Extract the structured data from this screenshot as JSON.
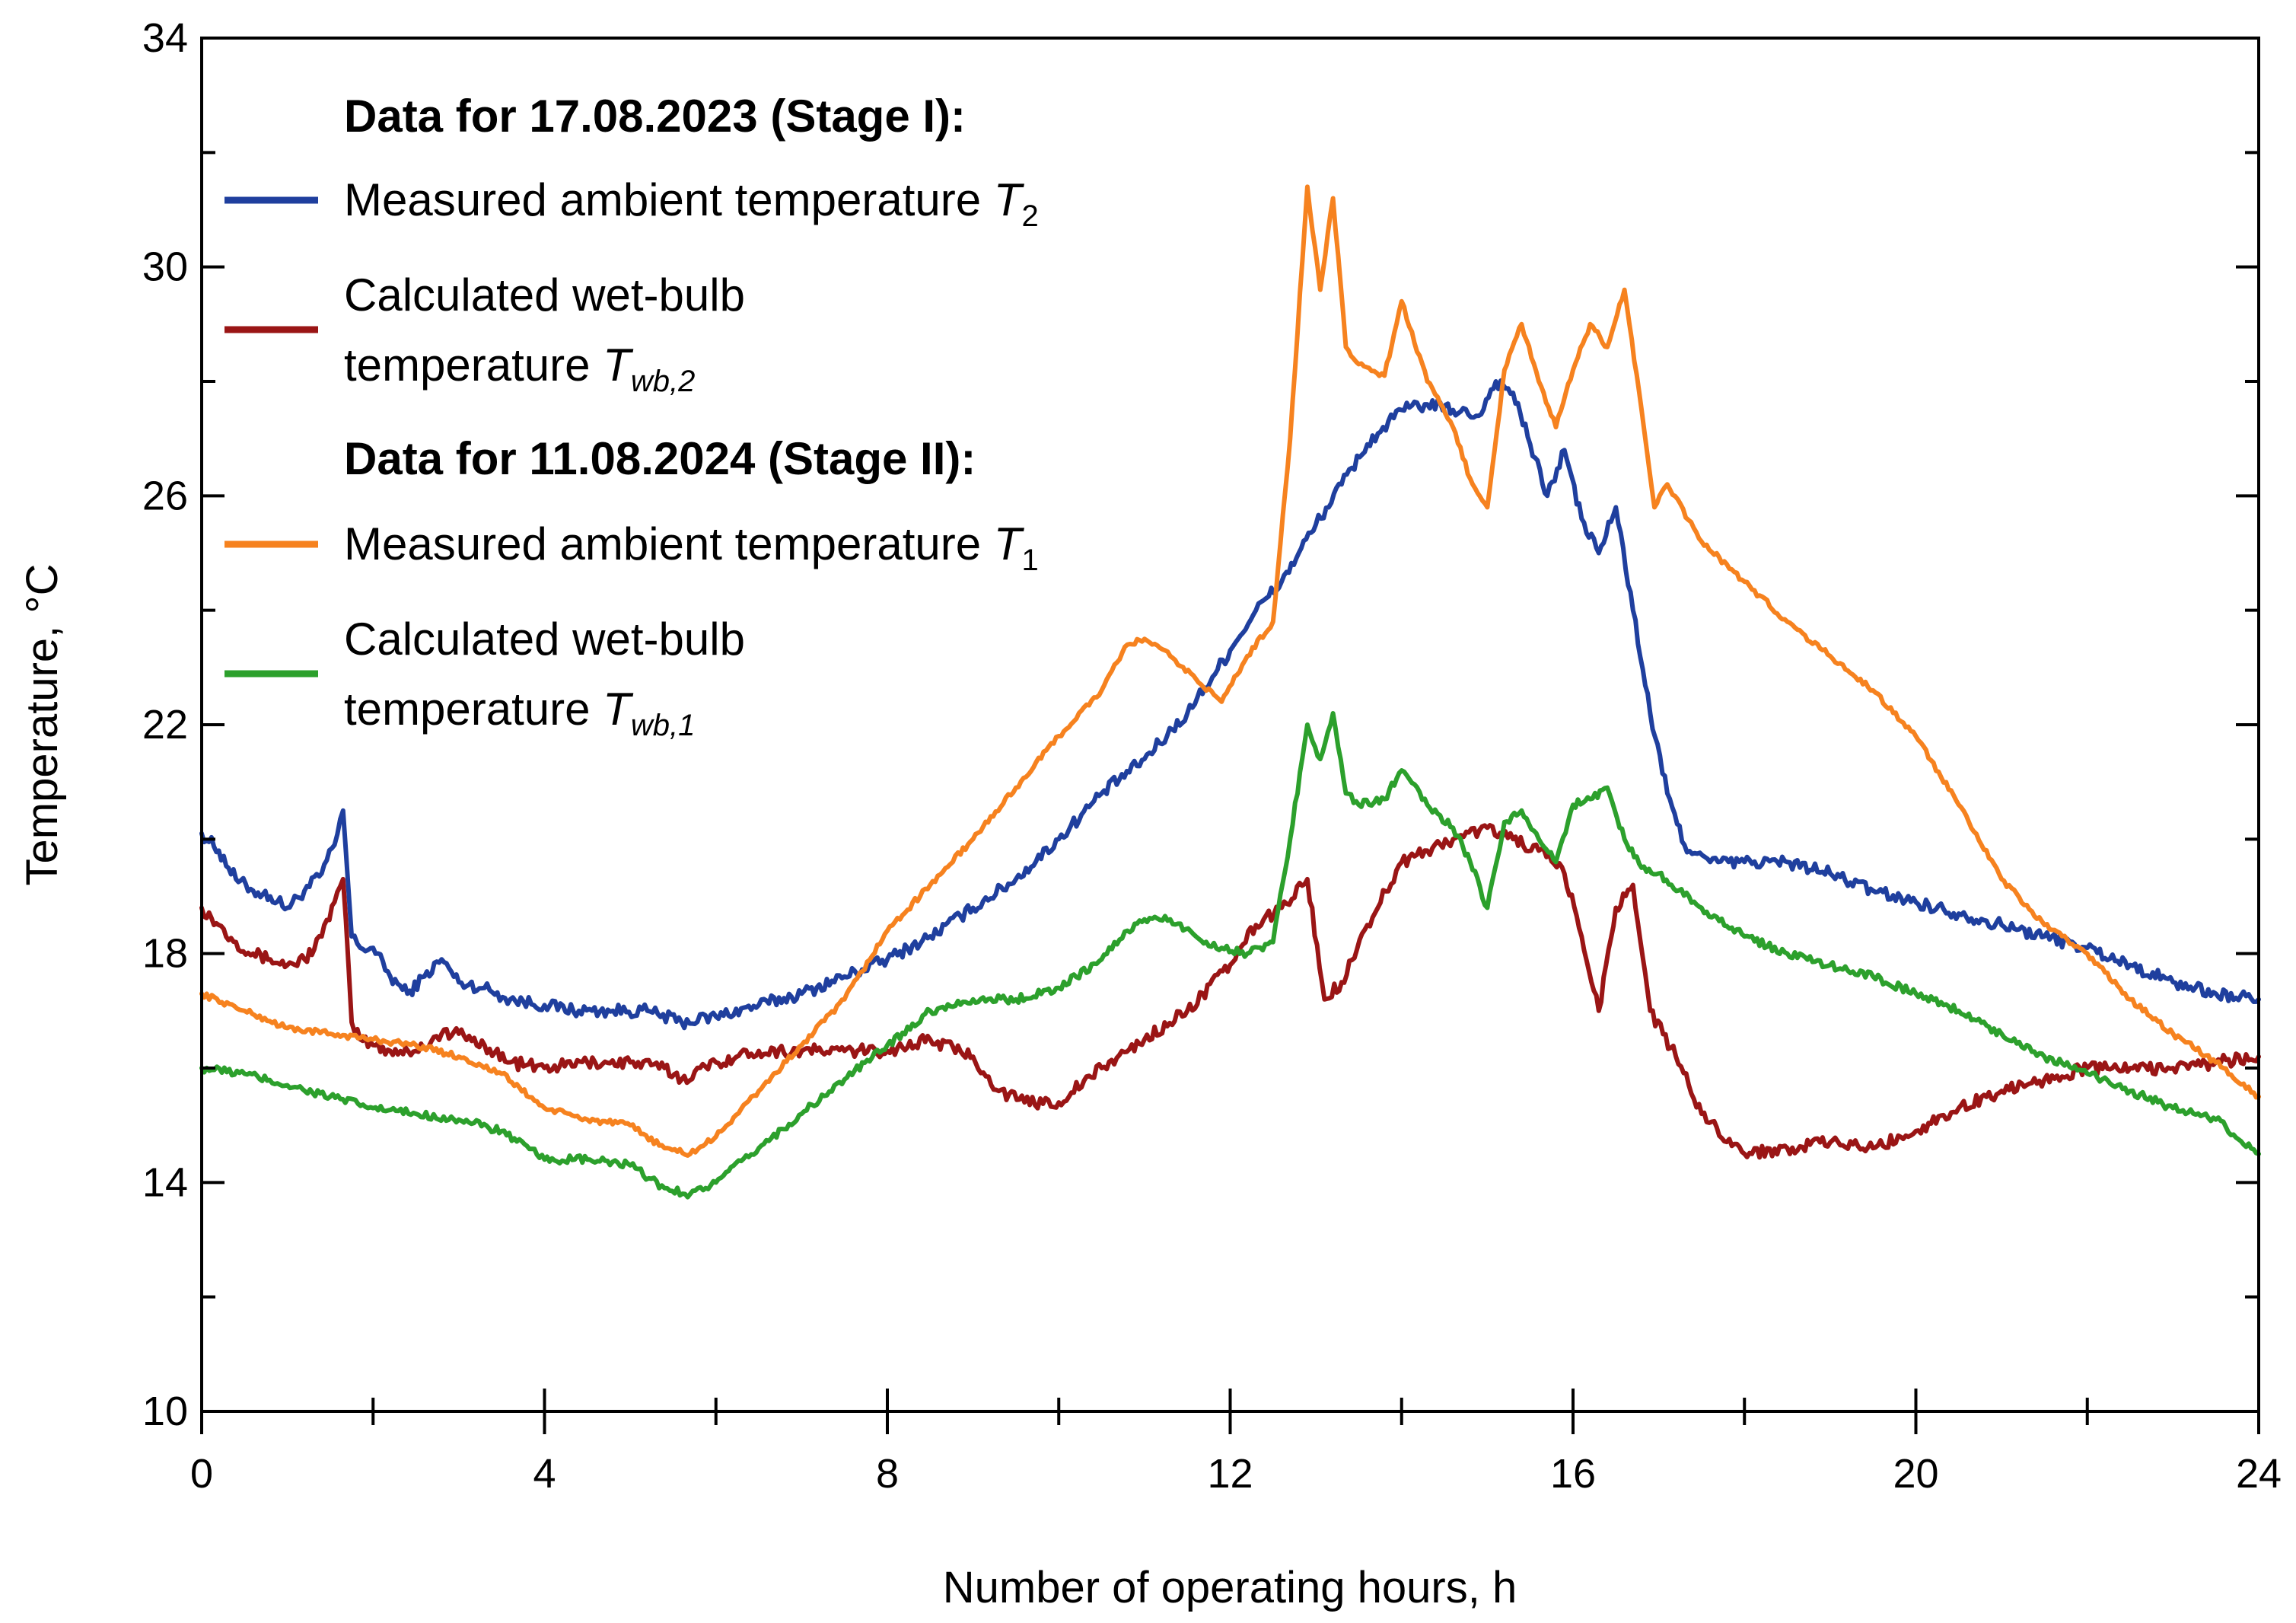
{
  "chart_data": {
    "type": "line",
    "title": "",
    "xlabel": "Number of operating hours, h",
    "ylabel": "Temperature, °C",
    "xlim": [
      0,
      24
    ],
    "ylim": [
      10,
      34
    ],
    "xticks": [
      0,
      4,
      8,
      12,
      16,
      20,
      24
    ],
    "yticks": [
      10,
      14,
      18,
      22,
      26,
      30,
      34
    ],
    "xtick_labels": [
      "0",
      "4",
      "8",
      "12",
      "16",
      "20",
      "24"
    ],
    "ytick_labels": [
      "10",
      "14",
      "18",
      "22",
      "26",
      "30",
      "34"
    ],
    "grid": false,
    "legend_position": "top-left",
    "legend": {
      "group1_title": "Data for 17.08.2023 (Stage I):",
      "group2_title": "Data for 11.08.2024 (Stage II):",
      "s1_text": "Measured ambient temperature",
      "s1_sym": "T",
      "s1_sub": "2",
      "s2_line1": "Calculated wet-bulb",
      "s2_line2": "temperature",
      "s2_sym": "T",
      "s2_sub": "wb,2",
      "s3_text": "Measured ambient temperature",
      "s3_sym": "T",
      "s3_sub": "1",
      "s4_line1": "Calculated wet-bulb",
      "s4_line2": "temperature",
      "s4_sym": "T",
      "s4_sub": "wb,1"
    },
    "series": [
      {
        "name": "Measured ambient temperature T2 (17.08.2023)",
        "color": "#1f3f9e",
        "x": [
          0,
          0.2,
          0.4,
          0.6,
          0.8,
          1.0,
          1.2,
          1.4,
          1.55,
          1.65,
          1.75,
          1.85,
          2.0,
          2.2,
          2.4,
          2.6,
          2.8,
          3.0,
          3.3,
          3.6,
          4.0,
          4.4,
          4.8,
          5.2,
          5.6,
          6.0,
          6.5,
          7.0,
          7.5,
          8.0,
          8.5,
          9.0,
          9.5,
          10.0,
          10.5,
          11.0,
          11.5,
          12.0,
          12.3,
          12.6,
          12.8,
          13.0,
          13.3,
          13.6,
          14.0,
          14.3,
          14.6,
          14.9,
          15.1,
          15.3,
          15.5,
          15.7,
          15.9,
          16.1,
          16.3,
          16.5,
          16.7,
          16.9,
          17.1,
          17.3,
          17.6,
          18.0,
          18.5,
          19.0,
          19.5,
          20.0,
          20.5,
          21.0,
          21.5,
          22.0,
          22.5,
          23.0,
          23.5,
          24.0
        ],
        "y": [
          20.1,
          19.8,
          19.3,
          19.1,
          19.0,
          18.8,
          19.1,
          19.4,
          19.9,
          20.5,
          18.3,
          18.1,
          18.1,
          17.6,
          17.3,
          17.6,
          17.9,
          17.5,
          17.4,
          17.2,
          17.1,
          17.0,
          17.0,
          17.0,
          16.8,
          16.9,
          17.1,
          17.3,
          17.6,
          17.9,
          18.3,
          18.8,
          19.3,
          20.0,
          20.8,
          21.4,
          22.2,
          23.3,
          24.0,
          24.5,
          25.0,
          25.5,
          26.2,
          26.9,
          27.5,
          27.6,
          27.5,
          27.4,
          28.0,
          27.8,
          26.9,
          26.0,
          26.8,
          25.6,
          25.0,
          25.8,
          24.0,
          22.2,
          20.8,
          19.9,
          19.6,
          19.6,
          19.6,
          19.4,
          19.1,
          18.9,
          18.7,
          18.5,
          18.3,
          18.1,
          17.8,
          17.5,
          17.3,
          17.2
        ]
      },
      {
        "name": "Calculated wet-bulb temperature Twb,2 (17.08.2023)",
        "color": "#9a1515",
        "x": [
          0,
          0.2,
          0.4,
          0.6,
          0.8,
          1.0,
          1.2,
          1.4,
          1.55,
          1.65,
          1.75,
          1.85,
          2.0,
          2.2,
          2.5,
          2.8,
          3.0,
          3.3,
          3.6,
          4.0,
          4.5,
          5.0,
          5.4,
          5.6,
          6.0,
          6.5,
          7.0,
          7.5,
          8.0,
          8.5,
          9.0,
          9.3,
          9.6,
          10.0,
          10.5,
          11.0,
          11.5,
          12.0,
          12.3,
          12.6,
          12.9,
          13.1,
          13.3,
          13.6,
          14.0,
          14.3,
          14.6,
          15.0,
          15.3,
          15.6,
          15.9,
          16.1,
          16.3,
          16.5,
          16.7,
          16.9,
          17.2,
          17.5,
          18.0,
          18.5,
          19.0,
          19.5,
          20.0,
          20.5,
          21.0,
          21.5,
          22.0,
          22.5,
          23.0,
          23.5,
          24.0
        ],
        "y": [
          18.8,
          18.5,
          18.2,
          18.0,
          17.9,
          17.8,
          17.9,
          18.3,
          18.9,
          19.3,
          16.8,
          16.5,
          16.4,
          16.3,
          16.3,
          16.6,
          16.6,
          16.4,
          16.1,
          16.0,
          16.1,
          16.1,
          16.0,
          15.8,
          16.1,
          16.3,
          16.3,
          16.3,
          16.3,
          16.5,
          16.2,
          15.6,
          15.4,
          15.4,
          16.0,
          16.5,
          17.0,
          17.8,
          18.5,
          18.8,
          19.3,
          17.2,
          17.5,
          18.5,
          19.6,
          19.8,
          20.0,
          20.2,
          20.0,
          19.8,
          19.4,
          18.3,
          17.0,
          18.8,
          19.2,
          17.0,
          16.2,
          15.2,
          14.5,
          14.6,
          14.7,
          14.6,
          14.9,
          15.3,
          15.6,
          15.8,
          16.0,
          16.0,
          16.0,
          16.1,
          16.2
        ]
      },
      {
        "name": "Measured ambient temperature T1 (11.08.2024)",
        "color": "#f6821f",
        "x": [
          0,
          0.5,
          1.0,
          1.5,
          2.0,
          2.5,
          3.0,
          3.5,
          4.0,
          4.5,
          5.0,
          5.4,
          5.7,
          6.0,
          6.5,
          7.0,
          7.5,
          8.0,
          8.5,
          9.0,
          9.5,
          10.0,
          10.5,
          10.8,
          11.0,
          11.3,
          11.6,
          11.9,
          12.2,
          12.5,
          12.7,
          12.9,
          13.05,
          13.2,
          13.35,
          13.5,
          13.8,
          14.0,
          14.3,
          14.6,
          14.8,
          15.0,
          15.2,
          15.4,
          15.6,
          15.8,
          16.0,
          16.2,
          16.4,
          16.6,
          16.8,
          16.95,
          17.1,
          17.5,
          18.0,
          18.5,
          19.0,
          19.5,
          20.0,
          20.5,
          21.0,
          21.5,
          22.0,
          22.5,
          23.0,
          23.5,
          24.0
        ],
        "y": [
          17.3,
          17.0,
          16.7,
          16.6,
          16.5,
          16.4,
          16.2,
          15.9,
          15.3,
          15.1,
          15.0,
          14.6,
          14.5,
          14.8,
          15.6,
          16.4,
          17.2,
          18.4,
          19.2,
          20.0,
          20.9,
          21.8,
          22.6,
          23.4,
          23.5,
          23.2,
          22.8,
          22.4,
          23.2,
          23.8,
          27.0,
          31.4,
          29.6,
          31.2,
          28.6,
          28.3,
          28.1,
          29.4,
          28.0,
          27.2,
          26.3,
          25.8,
          28.2,
          29.0,
          28.0,
          27.2,
          28.2,
          29.0,
          28.6,
          29.6,
          27.5,
          25.8,
          26.2,
          25.2,
          24.5,
          23.8,
          23.2,
          22.6,
          21.8,
          20.6,
          19.3,
          18.5,
          18.0,
          17.2,
          16.6,
          16.1,
          15.5
        ]
      },
      {
        "name": "Calculated wet-bulb temperature Twb,1 (11.08.2024)",
        "color": "#2ca02c",
        "x": [
          0,
          0.5,
          1.0,
          1.5,
          2.0,
          2.5,
          3.0,
          3.5,
          4.0,
          4.5,
          5.0,
          5.4,
          5.7,
          6.0,
          6.5,
          7.0,
          7.5,
          8.0,
          8.5,
          9.0,
          9.5,
          10.0,
          10.5,
          10.8,
          11.0,
          11.3,
          11.6,
          11.9,
          12.2,
          12.5,
          12.7,
          12.9,
          13.05,
          13.2,
          13.35,
          13.5,
          13.8,
          14.0,
          14.3,
          14.6,
          14.8,
          15.0,
          15.2,
          15.4,
          15.6,
          15.8,
          16.0,
          16.2,
          16.4,
          16.6,
          16.8,
          17.0,
          17.5,
          18.0,
          18.5,
          19.0,
          19.5,
          20.0,
          20.5,
          21.0,
          21.5,
          22.0,
          22.5,
          23.0,
          23.5,
          24.0
        ],
        "y": [
          16.0,
          15.9,
          15.7,
          15.5,
          15.3,
          15.2,
          15.1,
          14.9,
          14.4,
          14.4,
          14.3,
          13.9,
          13.8,
          14.0,
          14.6,
          15.2,
          15.8,
          16.4,
          17.0,
          17.2,
          17.2,
          17.4,
          17.9,
          18.4,
          18.6,
          18.6,
          18.3,
          18.1,
          18.0,
          18.2,
          20.0,
          22.0,
          21.4,
          22.2,
          20.8,
          20.6,
          20.7,
          21.2,
          20.6,
          20.2,
          19.6,
          18.8,
          20.3,
          20.5,
          20.0,
          19.6,
          20.6,
          20.7,
          20.9,
          20.0,
          19.5,
          19.4,
          18.8,
          18.3,
          18.0,
          17.8,
          17.6,
          17.3,
          17.0,
          16.6,
          16.2,
          15.9,
          15.6,
          15.3,
          15.1,
          14.5
        ]
      }
    ]
  }
}
